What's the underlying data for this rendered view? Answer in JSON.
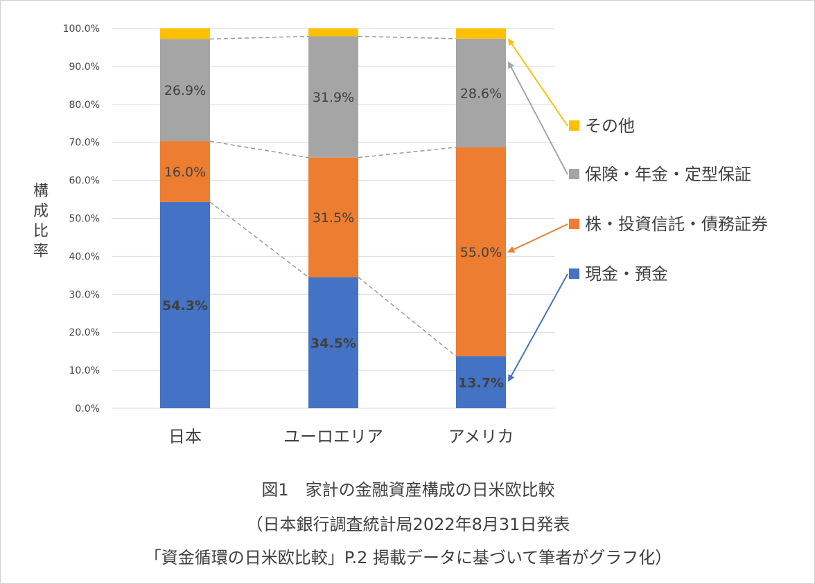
{
  "chart_data": {
    "type": "bar",
    "stacked": true,
    "ylabel": "構成比率",
    "ylim": [
      0,
      100
    ],
    "yticks": [
      "0.0%",
      "10.0%",
      "20.0%",
      "30.0%",
      "40.0%",
      "50.0%",
      "60.0%",
      "70.0%",
      "80.0%",
      "90.0%",
      "100.0%"
    ],
    "categories": [
      "日本",
      "ユーロエリア",
      "アメリカ"
    ],
    "series": [
      {
        "name": "現金・預金",
        "color": "#4472C4",
        "label_color": "#FFFF00",
        "values": [
          54.3,
          34.5,
          13.7
        ],
        "labels": [
          "54.3%",
          "34.5%",
          "13.7%"
        ]
      },
      {
        "name": "株・投資信託・債務証券",
        "color": "#ED7D31",
        "label_color": "#404040",
        "values": [
          16.0,
          31.5,
          55.0
        ],
        "labels": [
          "16.0%",
          "31.5%",
          "55.0%"
        ]
      },
      {
        "name": "保険・年金・定型保証",
        "color": "#A5A5A5",
        "label_color": "#404040",
        "values": [
          26.9,
          31.9,
          28.6
        ],
        "labels": [
          "26.9%",
          "31.9%",
          "28.6%"
        ]
      },
      {
        "name": "その他",
        "color": "#FFC000",
        "label_color": "#404040",
        "values": [
          2.8,
          2.1,
          2.7
        ],
        "labels": [
          "",
          "",
          ""
        ]
      }
    ],
    "grid": true,
    "legend_position": "right"
  },
  "caption": {
    "line1": "図1　家計の金融資産構成の日米欧比較",
    "line2": "（日本銀行調査統計局2022年8月31日発表",
    "line3": "「資金循環の日米欧比較」P.2 掲載データに基づいて筆者がグラフ化）"
  }
}
